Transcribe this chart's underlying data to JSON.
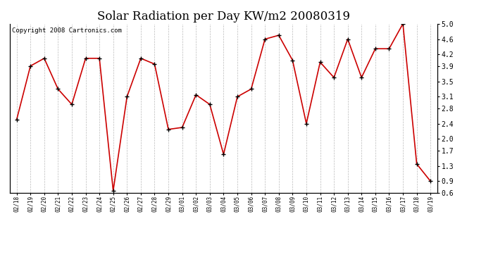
{
  "title": "Solar Radiation per Day KW/m2 20080319",
  "copyright": "Copyright 2008 Cartronics.com",
  "x_labels": [
    "02/18",
    "02/19",
    "02/20",
    "02/21",
    "02/22",
    "02/23",
    "02/24",
    "02/25",
    "02/26",
    "02/27",
    "02/28",
    "02/29",
    "03/01",
    "03/02",
    "03/03",
    "03/04",
    "03/05",
    "03/06",
    "03/07",
    "03/08",
    "03/09",
    "03/10",
    "03/11",
    "03/12",
    "03/13",
    "03/14",
    "03/15",
    "03/16",
    "03/17",
    "03/18",
    "03/19"
  ],
  "y_values": [
    2.5,
    3.9,
    4.1,
    3.3,
    2.9,
    4.1,
    4.1,
    0.65,
    3.1,
    4.1,
    3.95,
    2.25,
    2.3,
    3.15,
    2.9,
    1.6,
    3.1,
    3.3,
    4.6,
    4.7,
    4.05,
    2.4,
    4.0,
    3.6,
    4.6,
    3.6,
    4.35,
    4.35,
    5.0,
    1.35,
    0.9
  ],
  "line_color": "#cc0000",
  "marker_color": "#000000",
  "bg_color": "#ffffff",
  "grid_color": "#aaaaaa",
  "ylim": [
    0.6,
    5.0
  ],
  "yticks_right": [
    0.6,
    0.9,
    1.3,
    1.7,
    2.0,
    2.4,
    2.8,
    3.1,
    3.5,
    3.9,
    4.2,
    4.6,
    5.0
  ],
  "title_fontsize": 12,
  "copyright_fontsize": 6.5
}
